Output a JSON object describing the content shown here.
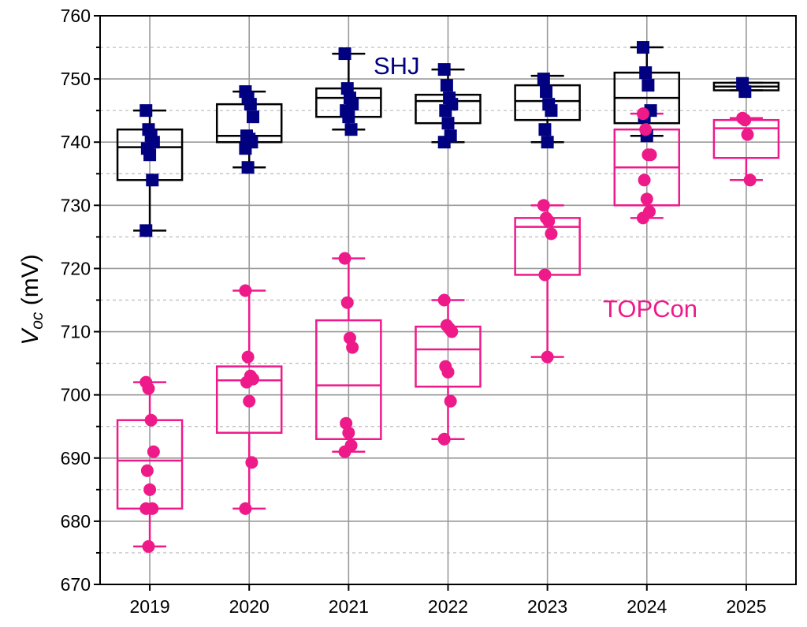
{
  "chart_data": {
    "type": "box",
    "title": "",
    "xlabel": "",
    "ylabel": {
      "main": "V",
      "subscript": "oc",
      "unit": " (mV)"
    },
    "ylim": [
      670,
      760
    ],
    "yticks": [
      670,
      680,
      690,
      700,
      710,
      720,
      730,
      740,
      750,
      760
    ],
    "grid": true,
    "categories": [
      "2019",
      "2020",
      "2021",
      "2022",
      "2023",
      "2024",
      "2025"
    ],
    "series": [
      {
        "name": "SHJ",
        "color": "#000080",
        "marker": "square",
        "label_color": "#000080",
        "boxes": [
          {
            "q1": 734,
            "median": 739.2,
            "q3": 742,
            "min": 726,
            "max": 745,
            "points": [
              745,
              742,
              741,
              740,
              739,
              738,
              734,
              726
            ]
          },
          {
            "q1": 740,
            "median": 741,
            "q3": 746,
            "min": 736,
            "max": 748,
            "points": [
              748,
              747,
              746,
              744,
              741,
              740.5,
              740,
              739,
              736
            ]
          },
          {
            "q1": 744,
            "median": 747,
            "q3": 748.5,
            "min": 742,
            "max": 754,
            "points": [
              754,
              748.5,
              747,
              746,
              745,
              744,
              742
            ]
          },
          {
            "q1": 743,
            "median": 746.5,
            "q3": 747.5,
            "min": 740,
            "max": 751.5,
            "points": [
              751.5,
              749,
              747,
              746,
              745,
              743,
              741,
              740
            ]
          },
          {
            "q1": 743.5,
            "median": 746.5,
            "q3": 749,
            "min": 740,
            "max": 750.5,
            "points": [
              750,
              748,
              746,
              745,
              742,
              740
            ]
          },
          {
            "q1": 743,
            "median": 747,
            "q3": 751,
            "min": 741,
            "max": 755,
            "points": [
              755,
              751,
              749,
              745,
              744,
              741
            ]
          },
          {
            "q1": 748.2,
            "median": 748.8,
            "q3": 749.4,
            "min": 748.2,
            "max": 749.4,
            "points": [
              749.3,
              748
            ]
          }
        ]
      },
      {
        "name": "TOPCon",
        "color": "#EE1A8A",
        "marker": "circle",
        "label_color": "#EE1A8A",
        "boxes": [
          {
            "q1": 682,
            "median": 689.6,
            "q3": 696,
            "min": 676,
            "max": 702,
            "points": [
              702,
              701,
              696,
              691,
              688,
              685,
              682,
              682,
              676
            ]
          },
          {
            "q1": 694,
            "median": 702.3,
            "q3": 704.5,
            "min": 682,
            "max": 716.5,
            "points": [
              716.5,
              706,
              703,
              702.5,
              702,
              699,
              689.3,
              682
            ]
          },
          {
            "q1": 693,
            "median": 701.5,
            "q3": 711.8,
            "min": 691,
            "max": 721.6,
            "points": [
              721.6,
              714.6,
              709,
              707.5,
              695.5,
              694,
              692,
              691
            ]
          },
          {
            "q1": 701.3,
            "median": 707.2,
            "q3": 710.8,
            "min": 693,
            "max": 715,
            "points": [
              715,
              711,
              710.5,
              710,
              704.5,
              703.6,
              699,
              693
            ]
          },
          {
            "q1": 719,
            "median": 726.6,
            "q3": 728,
            "min": 706,
            "max": 730,
            "points": [
              730,
              728,
              727.5,
              725.5,
              719,
              706
            ]
          },
          {
            "q1": 730,
            "median": 736,
            "q3": 742,
            "min": 728,
            "max": 744.5,
            "points": [
              744.5,
              742,
              738,
              738,
              734,
              731,
              729,
              728
            ]
          },
          {
            "q1": 737.5,
            "median": 742.2,
            "q3": 743.5,
            "min": 734,
            "max": 743.8,
            "points": [
              743.8,
              743.5,
              741.2,
              734
            ]
          }
        ]
      }
    ]
  }
}
